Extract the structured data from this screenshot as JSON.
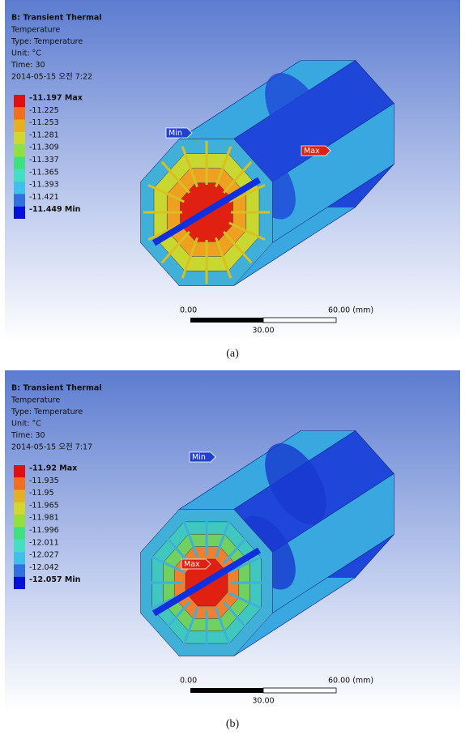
{
  "panels": [
    {
      "header": {
        "title": "B: Transient Thermal",
        "lines": [
          "Temperature",
          "Type: Temperature",
          "Unit: °C",
          "Time: 30",
          "2014-05-15 오전 7:22"
        ]
      },
      "legend": [
        "-11.197 Max",
        "-11.225",
        "-11.253",
        "-11.281",
        "-11.309",
        "-11.337",
        "-11.365",
        "-11.393",
        "-11.421",
        "-11.449 Min"
      ],
      "probes": {
        "min": "Min",
        "max": "Max"
      },
      "scale_bar": {
        "start": "0.00",
        "end": "60.00 (mm)",
        "middle": "30.00"
      },
      "caption": "(a)"
    },
    {
      "header": {
        "title": "B: Transient Thermal",
        "lines": [
          "Temperature",
          "Type: Temperature",
          "Unit: °C",
          "Time: 30",
          "2014-05-15 오전 7:17"
        ]
      },
      "legend": [
        "-11.92 Max",
        "-11.935",
        "-11.95",
        "-11.965",
        "-11.981",
        "-11.996",
        "-12.011",
        "-12.027",
        "-12.042",
        "-12.057 Min"
      ],
      "probes": {
        "min": "Min",
        "max": "Max"
      },
      "scale_bar": {
        "start": "0.00",
        "end": "60.00 (mm)",
        "middle": "30.00"
      },
      "caption": "(b)"
    }
  ]
}
